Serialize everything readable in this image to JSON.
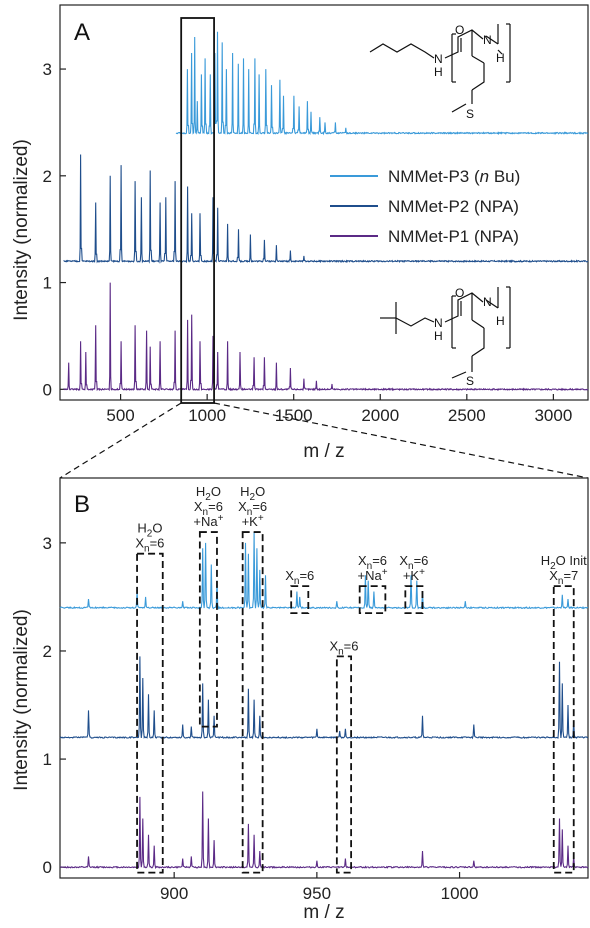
{
  "figure": {
    "title": ""
  },
  "colors": {
    "P3": "#3a9ad9",
    "P2": "#1f4e8c",
    "P1": "#5b2a86",
    "axis": "#222222"
  },
  "chart_data": [
    {
      "type": "line",
      "panel": "A",
      "xlabel": "m / z",
      "ylabel": "Intensity (normalized)",
      "xlim": [
        150,
        3200
      ],
      "ylim": [
        -0.1,
        3.6
      ],
      "xticks": [
        "500",
        "1000",
        "1500",
        "2000",
        "2500",
        "3000"
      ],
      "yticks": [
        "0",
        "1",
        "2",
        "3"
      ],
      "legend": {
        "placement": "right-middle",
        "entries": [
          {
            "key": "P3",
            "label": "NMMet-P3 (",
            "italic": "n",
            "suffix": " Bu)"
          },
          {
            "key": "P2",
            "label": "NMMet-P2 (NPA)",
            "italic": "",
            "suffix": ""
          },
          {
            "key": "P1",
            "label": "NMMet-P1 (NPA)",
            "italic": "",
            "suffix": ""
          }
        ]
      },
      "series": [
        {
          "name": "NMMet-P3 (n Bu)",
          "key": "P3",
          "baseline": 2.4,
          "x_start": 820,
          "peaks": [
            [
              887,
              0.6
            ],
            [
              911,
              0.75
            ],
            [
              928,
              0.9
            ],
            [
              943,
              0.3
            ],
            [
              968,
              0.55
            ],
            [
              989,
              0.7
            ],
            [
              1017,
              0.55
            ],
            [
              1046,
              0.75
            ],
            [
              1059,
              0.95
            ],
            [
              1088,
              0.85
            ],
            [
              1110,
              0.6
            ],
            [
              1147,
              0.75
            ],
            [
              1180,
              0.65
            ],
            [
              1210,
              0.7
            ],
            [
              1240,
              0.6
            ],
            [
              1275,
              0.7
            ],
            [
              1300,
              0.55
            ],
            [
              1340,
              0.6
            ],
            [
              1373,
              0.45
            ],
            [
              1420,
              0.5
            ],
            [
              1440,
              0.35
            ],
            [
              1500,
              0.35
            ],
            [
              1530,
              0.25
            ],
            [
              1580,
              0.3
            ],
            [
              1600,
              0.2
            ],
            [
              1650,
              0.15
            ],
            [
              1680,
              0.1
            ],
            [
              1740,
              0.1
            ],
            [
              1800,
              0.05
            ]
          ]
        },
        {
          "name": "NMMet-P2 (NPA)",
          "key": "P2",
          "baseline": 1.2,
          "x_start": 170,
          "peaks": [
            [
              270,
              1.0
            ],
            [
              357,
              0.55
            ],
            [
              440,
              0.8
            ],
            [
              502,
              0.9
            ],
            [
              585,
              0.75
            ],
            [
              620,
              0.6
            ],
            [
              672,
              0.85
            ],
            [
              728,
              0.55
            ],
            [
              760,
              0.6
            ],
            [
              814,
              0.75
            ],
            [
              887,
              0.7
            ],
            [
              910,
              0.45
            ],
            [
              960,
              0.45
            ],
            [
              1035,
              0.6
            ],
            [
              1060,
              0.5
            ],
            [
              1118,
              0.35
            ],
            [
              1180,
              0.3
            ],
            [
              1250,
              0.25
            ],
            [
              1330,
              0.2
            ],
            [
              1400,
              0.15
            ],
            [
              1480,
              0.1
            ],
            [
              1560,
              0.05
            ]
          ]
        },
        {
          "name": "NMMet-P1 (NPA)",
          "key": "P1",
          "baseline": 0.0,
          "x_start": 170,
          "peaks": [
            [
              200,
              0.25
            ],
            [
              270,
              0.45
            ],
            [
              300,
              0.35
            ],
            [
              357,
              0.6
            ],
            [
              440,
              1.0
            ],
            [
              502,
              0.45
            ],
            [
              585,
              0.6
            ],
            [
              650,
              0.55
            ],
            [
              672,
              0.4
            ],
            [
              728,
              0.45
            ],
            [
              814,
              0.55
            ],
            [
              887,
              0.65
            ],
            [
              910,
              0.7
            ],
            [
              960,
              0.45
            ],
            [
              1035,
              0.5
            ],
            [
              1060,
              0.35
            ],
            [
              1118,
              0.45
            ],
            [
              1190,
              0.35
            ],
            [
              1270,
              0.3
            ],
            [
              1330,
              0.3
            ],
            [
              1400,
              0.25
            ],
            [
              1480,
              0.2
            ],
            [
              1560,
              0.1
            ],
            [
              1630,
              0.08
            ],
            [
              1720,
              0.05
            ]
          ]
        }
      ],
      "zoom_box": {
        "x": [
          850,
          1040
        ]
      }
    },
    {
      "type": "line",
      "panel": "B",
      "xlabel": "m / z",
      "ylabel": "Intensity (normalized)",
      "xlim": [
        860,
        1045
      ],
      "ylim": [
        -0.1,
        3.6
      ],
      "xticks": [
        "900",
        "950",
        "1000"
      ],
      "yticks": [
        "0",
        "1",
        "2",
        "3"
      ],
      "series": [
        {
          "name": "NMMet-P3 (n Bu)",
          "key": "P3",
          "baseline": 2.4,
          "peaks": [
            [
              870,
              0.08
            ],
            [
              887,
              0.15
            ],
            [
              890,
              0.1
            ],
            [
              903,
              0.06
            ],
            [
              910,
              0.55
            ],
            [
              911,
              0.6
            ],
            [
              913,
              0.4
            ],
            [
              915,
              0.25
            ],
            [
              925,
              0.6
            ],
            [
              926,
              0.5
            ],
            [
              928,
              0.7
            ],
            [
              929,
              0.55
            ],
            [
              930,
              0.35
            ],
            [
              932,
              0.3
            ],
            [
              943,
              0.15
            ],
            [
              944,
              0.1
            ],
            [
              957,
              0.06
            ],
            [
              967,
              0.3
            ],
            [
              968,
              0.25
            ],
            [
              970,
              0.15
            ],
            [
              983,
              0.3
            ],
            [
              985,
              0.25
            ],
            [
              987,
              0.15
            ],
            [
              1002,
              0.06
            ],
            [
              1036,
              0.12
            ],
            [
              1038,
              0.08
            ]
          ]
        },
        {
          "name": "NMMet-P2 (NPA)",
          "key": "P2",
          "baseline": 1.2,
          "peaks": [
            [
              870,
              0.25
            ],
            [
              888,
              0.75
            ],
            [
              889,
              0.55
            ],
            [
              891,
              0.4
            ],
            [
              893,
              0.25
            ],
            [
              903,
              0.12
            ],
            [
              906,
              0.1
            ],
            [
              910,
              0.5
            ],
            [
              912,
              0.35
            ],
            [
              914,
              0.2
            ],
            [
              926,
              0.45
            ],
            [
              928,
              0.35
            ],
            [
              930,
              0.2
            ],
            [
              950,
              0.08
            ],
            [
              958,
              0.06
            ],
            [
              960,
              0.08
            ],
            [
              987,
              0.2
            ],
            [
              1005,
              0.12
            ],
            [
              1035,
              0.7
            ],
            [
              1036,
              0.5
            ],
            [
              1038,
              0.3
            ],
            [
              1040,
              0.15
            ]
          ]
        },
        {
          "name": "NMMet-P1 (NPA)",
          "key": "P1",
          "baseline": 0.0,
          "peaks": [
            [
              870,
              0.1
            ],
            [
              888,
              0.65
            ],
            [
              889,
              0.45
            ],
            [
              891,
              0.3
            ],
            [
              893,
              0.2
            ],
            [
              903,
              0.08
            ],
            [
              906,
              0.1
            ],
            [
              910,
              0.7
            ],
            [
              912,
              0.45
            ],
            [
              914,
              0.25
            ],
            [
              926,
              0.4
            ],
            [
              928,
              0.3
            ],
            [
              930,
              0.15
            ],
            [
              950,
              0.06
            ],
            [
              960,
              0.08
            ],
            [
              987,
              0.15
            ],
            [
              1005,
              0.06
            ],
            [
              1035,
              0.45
            ],
            [
              1036,
              0.35
            ],
            [
              1038,
              0.2
            ],
            [
              1040,
              0.1
            ]
          ]
        }
      ],
      "annotation_boxes": [
        {
          "x": [
            887,
            896
          ],
          "y": [
            -0.05,
            2.9
          ],
          "lines": [
            "H2O",
            "Xn=6"
          ]
        },
        {
          "x": [
            909,
            915
          ],
          "y": [
            1.3,
            3.1
          ],
          "lines": [
            "H2O",
            "Xn=6",
            "+Na+"
          ]
        },
        {
          "x": [
            924,
            931
          ],
          "y": [
            -0.05,
            3.1
          ],
          "lines": [
            "H2O",
            "Xn=6",
            "+K+"
          ]
        },
        {
          "x": [
            941,
            947
          ],
          "y": [
            2.35,
            2.6
          ],
          "lines": [
            "Xn=6"
          ]
        },
        {
          "x": [
            957,
            962
          ],
          "y": [
            -0.05,
            1.95
          ],
          "lines": [
            "Xn=6"
          ]
        },
        {
          "x": [
            965,
            974
          ],
          "y": [
            2.35,
            2.6
          ],
          "lines": [
            "Xn=6",
            "+Na+"
          ]
        },
        {
          "x": [
            981,
            987
          ],
          "y": [
            2.35,
            2.6
          ],
          "lines": [
            "Xn=6",
            "+K+"
          ]
        },
        {
          "x": [
            1033,
            1040
          ],
          "y": [
            -0.05,
            2.6
          ],
          "lines": [
            "H2O Init",
            "Xn=7"
          ]
        }
      ]
    }
  ],
  "panel_letters": {
    "A": "A",
    "B": "B"
  },
  "chem_labels": {
    "top": {
      "n1": "N",
      "h1": "H",
      "o": "O",
      "n2": "N",
      "h2": "H",
      "s": "S"
    },
    "bottom": {
      "n1": "N",
      "h1": "H",
      "o": "O",
      "n2": "N",
      "h2": "H",
      "s": "S"
    }
  },
  "annotation_text": {
    "h2o": "H",
    "o": "O",
    "two": "2",
    "x": "X",
    "n": "n",
    "eq6": "=6",
    "eq7": "=7",
    "na": "+Na",
    "k": "+K",
    "plus": "+",
    "init": " Init"
  }
}
